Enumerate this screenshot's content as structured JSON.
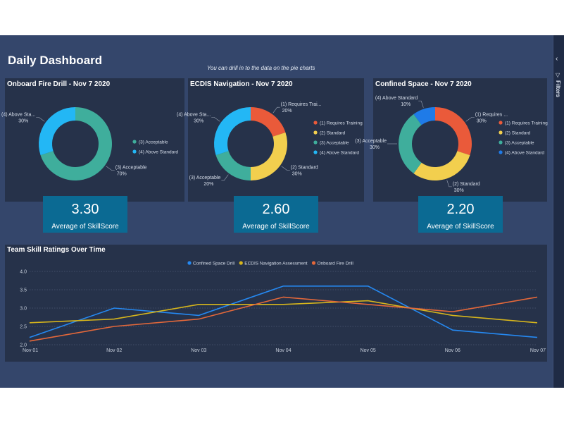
{
  "page": {
    "title": "Daily Dashboard",
    "subtitle": "You can drill in to the data on the pie charts",
    "filters_label": "Filters",
    "filters_chevron": "‹",
    "filters_funnel": "▽"
  },
  "colors": {
    "requires_training": "#ea5a3a",
    "standard": "#f2cf4e",
    "acceptable": "#3fae9c",
    "above_standard_cyan": "#23b7f5",
    "above_standard_blue": "#1f7be8",
    "line_confined": "#2589f2",
    "line_ecdis": "#d6b51c",
    "line_fire": "#e4683a"
  },
  "kpis": [
    {
      "value": "3.30",
      "label": "Average of SkillScore"
    },
    {
      "value": "2.60",
      "label": "Average of SkillScore"
    },
    {
      "value": "2.20",
      "label": "Average of SkillScore"
    }
  ],
  "chart_data": [
    {
      "type": "pie",
      "title": "Onboard Fire Drill - Nov 7 2020",
      "slices": [
        {
          "name": "(3) Acceptable",
          "value": 70,
          "label_name": "(3) Acceptable",
          "label_pct": "70%",
          "color": "#3fae9c"
        },
        {
          "name": "(4) Above Standard",
          "value": 30,
          "label_name": "(4) Above Sta...",
          "label_pct": "30%",
          "color": "#23b7f5"
        }
      ],
      "legend": [
        "(3) Acceptable",
        "(4) Above Standard"
      ]
    },
    {
      "type": "pie",
      "title": "ECDIS Navigation - Nov 7 2020",
      "slices": [
        {
          "name": "(1) Requires Training",
          "value": 20,
          "label_name": "(1) Requires Trai...",
          "label_pct": "20%",
          "color": "#ea5a3a"
        },
        {
          "name": "(2) Standard",
          "value": 30,
          "label_name": "(2) Standard",
          "label_pct": "30%",
          "color": "#f2cf4e"
        },
        {
          "name": "(3) Acceptable",
          "value": 20,
          "label_name": "(3) Acceptable",
          "label_pct": "20%",
          "color": "#3fae9c"
        },
        {
          "name": "(4) Above Standard",
          "value": 30,
          "label_name": "(4) Above Sta...",
          "label_pct": "30%",
          "color": "#23b7f5"
        }
      ],
      "legend": [
        "(1) Requires Training",
        "(2) Standard",
        "(3) Acceptable",
        "(4) Above Standard"
      ]
    },
    {
      "type": "pie",
      "title": "Confined Space - Nov 7 2020",
      "slices": [
        {
          "name": "(1) Requires Training",
          "value": 30,
          "label_name": "(1) Requires ...",
          "label_pct": "30%",
          "color": "#ea5a3a"
        },
        {
          "name": "(2) Standard",
          "value": 30,
          "label_name": "(2) Standard",
          "label_pct": "30%",
          "color": "#f2cf4e"
        },
        {
          "name": "(3) Acceptable",
          "value": 30,
          "label_name": "(3) Acceptable",
          "label_pct": "30%",
          "color": "#3fae9c"
        },
        {
          "name": "(4) Above Standard",
          "value": 10,
          "label_name": "(4) Above Standard",
          "label_pct": "10%",
          "color": "#1f7be8"
        }
      ],
      "legend": [
        "(1) Requires Training",
        "(2) Standard",
        "(3) Acceptable",
        "(4) Above Standard"
      ]
    },
    {
      "type": "line",
      "title": "Team Skill Ratings Over Time",
      "categories": [
        "Nov 01",
        "Nov 02",
        "Nov 03",
        "Nov 04",
        "Nov 05",
        "Nov 06",
        "Nov 07"
      ],
      "ylim": [
        2.0,
        4.0
      ],
      "yticks": [
        "4.0",
        "3.5",
        "3.0",
        "2.5",
        "2.0"
      ],
      "grid": true,
      "legend_position": "top",
      "series": [
        {
          "name": "Confined Space Drill",
          "color": "#2589f2",
          "values": [
            2.2,
            3.0,
            2.8,
            3.6,
            3.6,
            2.4,
            2.2
          ]
        },
        {
          "name": "ECDIS Navigation Assessment",
          "color": "#d6b51c",
          "values": [
            2.6,
            2.7,
            3.1,
            3.1,
            3.2,
            2.8,
            2.6
          ]
        },
        {
          "name": "Onboard Fire Drill",
          "color": "#e4683a",
          "values": [
            2.1,
            2.5,
            2.7,
            3.3,
            3.1,
            2.9,
            3.3
          ]
        }
      ]
    }
  ]
}
